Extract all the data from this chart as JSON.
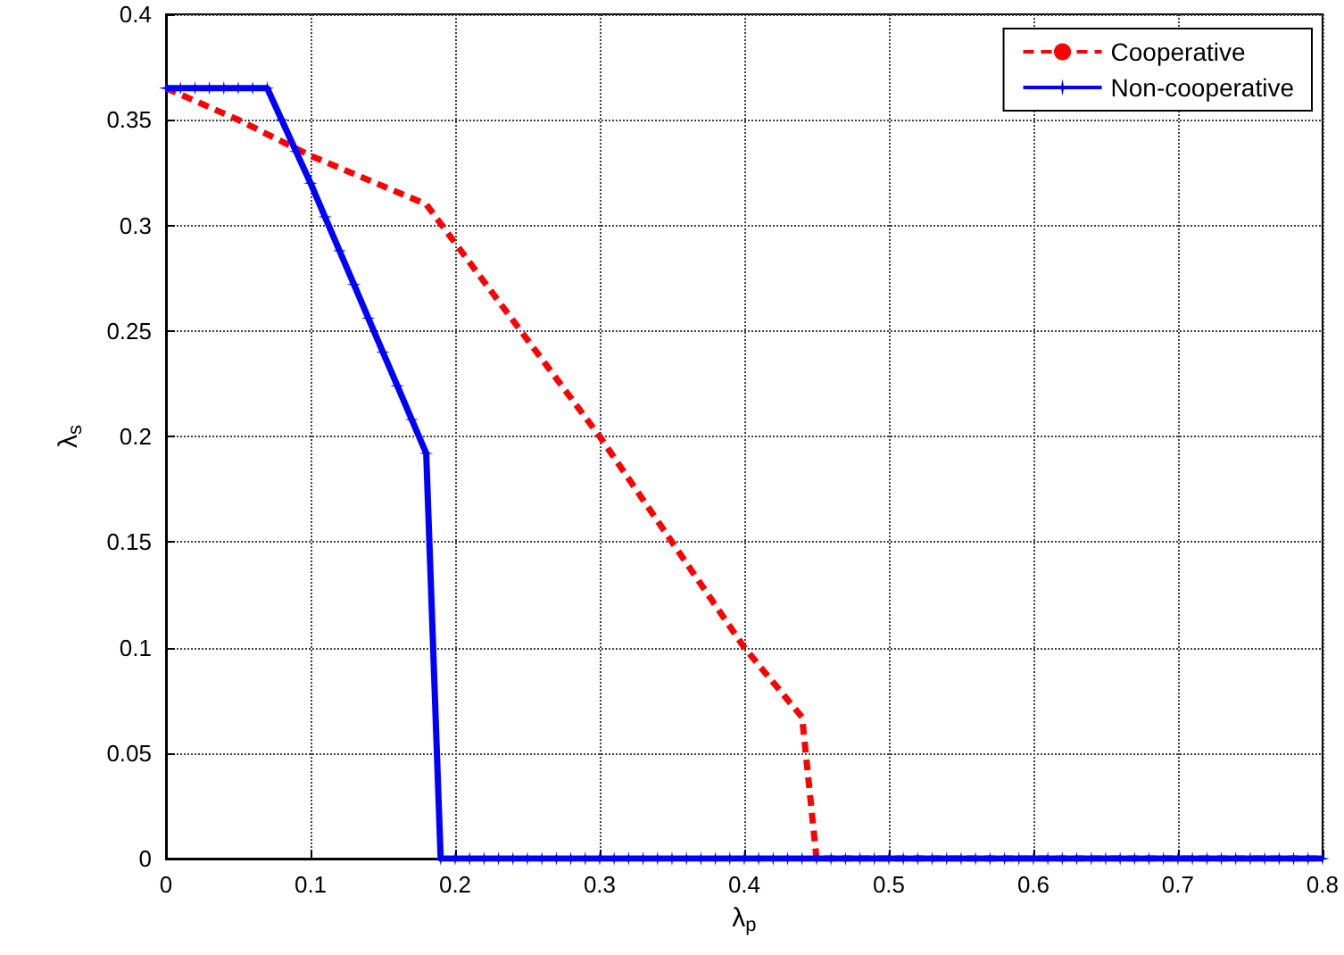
{
  "chart_data": {
    "type": "line",
    "xlabel": "λ$_{p}$",
    "ylabel": "λ$_{s}$",
    "xlim": [
      0,
      0.8
    ],
    "xticks": [
      0,
      0.1,
      0.2,
      0.3,
      0.4,
      0.5,
      0.6,
      0.7,
      0.8
    ],
    "ylim": [
      0,
      0.4
    ],
    "yticks": [
      0,
      0.05,
      0.1,
      0.15,
      0.2,
      0.25,
      0.3,
      0.35,
      0.4
    ],
    "grid": true,
    "legend": "top right",
    "series": [
      {
        "name": "Cooperative",
        "color": "#ff0000",
        "line_style": "dashed",
        "marker": "none",
        "x": [
          0,
          0.05,
          0.1,
          0.18,
          0.3,
          0.4,
          0.44,
          0.45,
          0.6,
          0.8
        ],
        "values": [
          0.365,
          0.35,
          0.333,
          0.31,
          0.2,
          0.1,
          0.067,
          0,
          0,
          0
        ]
      },
      {
        "name": "Non-cooperative",
        "color": "#0000ff",
        "line_style": "solid",
        "marker": "star",
        "x": [
          0,
          0.01,
          0.02,
          0.03,
          0.04,
          0.05,
          0.06,
          0.07,
          0.08,
          0.09,
          0.1,
          0.11,
          0.12,
          0.13,
          0.14,
          0.15,
          0.16,
          0.17,
          0.18,
          0.19,
          0.2,
          0.21,
          0.22,
          0.23,
          0.24,
          0.25,
          0.26,
          0.27,
          0.28,
          0.29,
          0.3,
          0.31,
          0.32,
          0.33,
          0.34,
          0.35,
          0.36,
          0.37,
          0.38,
          0.39,
          0.4,
          0.41,
          0.42,
          0.43,
          0.44,
          0.45,
          0.46,
          0.47,
          0.48,
          0.49,
          0.5,
          0.51,
          0.52,
          0.53,
          0.54,
          0.55,
          0.56,
          0.57,
          0.58,
          0.59,
          0.6,
          0.61,
          0.62,
          0.63,
          0.64,
          0.65,
          0.66,
          0.67,
          0.68,
          0.69,
          0.7,
          0.71,
          0.72,
          0.73,
          0.74,
          0.75,
          0.76,
          0.77,
          0.78,
          0.79,
          0.8
        ],
        "values": [
          0.365,
          0.365,
          0.365,
          0.365,
          0.365,
          0.365,
          0.365,
          0.365,
          0.35,
          0.335,
          0.32,
          0.304,
          0.288,
          0.272,
          0.256,
          0.24,
          0.224,
          0.208,
          0.192,
          0,
          0,
          0,
          0,
          0,
          0,
          0,
          0,
          0,
          0,
          0,
          0,
          0,
          0,
          0,
          0,
          0,
          0,
          0,
          0,
          0,
          0,
          0,
          0,
          0,
          0,
          0,
          0,
          0,
          0,
          0,
          0,
          0,
          0,
          0,
          0,
          0,
          0,
          0,
          0,
          0,
          0,
          0,
          0,
          0,
          0,
          0,
          0,
          0,
          0,
          0,
          0,
          0,
          0,
          0,
          0,
          0,
          0,
          0,
          0,
          0,
          0
        ]
      }
    ]
  }
}
